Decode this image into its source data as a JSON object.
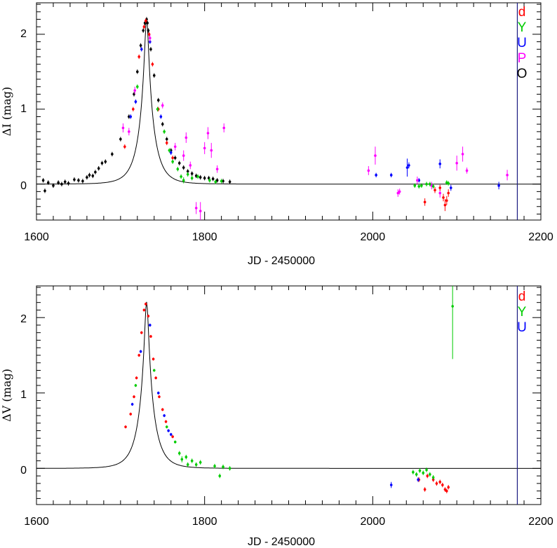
{
  "chart_data": [
    {
      "type": "scatter",
      "xlabel": "JD - 2450000",
      "ylabel": "ΔI (mag)",
      "xlim": [
        1600,
        2200
      ],
      "ylim": [
        -0.48,
        2.42
      ],
      "xticks": [
        "1600",
        "1800",
        "2000",
        "2200"
      ],
      "yticks": [
        "0",
        "1",
        "2"
      ],
      "vline_x": 2172,
      "model": {
        "t0": 1731,
        "tE": 17.5,
        "u0": 0.12,
        "fs": 0.9
      },
      "legend": [
        {
          "label": "d",
          "color": "#ff0000"
        },
        {
          "label": "Y",
          "color": "#00cc00"
        },
        {
          "label": "U",
          "color": "#0000ff"
        },
        {
          "label": "P",
          "color": "#ff00ff"
        },
        {
          "label": "O",
          "color": "#000000"
        }
      ],
      "series": [
        {
          "label": "O",
          "color": "#000000",
          "points": [
            [
              1608,
              0.05,
              0.03
            ],
            [
              1610,
              -0.09,
              0.03
            ],
            [
              1614,
              0.02,
              0.03
            ],
            [
              1620,
              -0.02,
              0.03
            ],
            [
              1626,
              0.02,
              0.03
            ],
            [
              1630,
              0.0,
              0.03
            ],
            [
              1634,
              0.03,
              0.03
            ],
            [
              1638,
              0.01,
              0.03
            ],
            [
              1645,
              0.06,
              0.03
            ],
            [
              1650,
              0.05,
              0.03
            ],
            [
              1655,
              0.04,
              0.03
            ],
            [
              1660,
              0.09,
              0.03
            ],
            [
              1663,
              0.12,
              0.03
            ],
            [
              1667,
              0.11,
              0.03
            ],
            [
              1670,
              0.16,
              0.03
            ],
            [
              1674,
              0.21,
              0.03
            ],
            [
              1678,
              0.28,
              0.03
            ],
            [
              1682,
              0.3,
              0.03
            ],
            [
              1690,
              0.4,
              0.03
            ],
            [
              1700,
              0.6,
              0.03
            ],
            [
              1710,
              0.9,
              0.03
            ],
            [
              1716,
              1.2,
              0.03
            ],
            [
              1720,
              1.5,
              0.03
            ],
            [
              1724,
              1.85,
              0.03
            ],
            [
              1727,
              2.05,
              0.03
            ],
            [
              1729,
              2.15,
              0.03
            ],
            [
              1731,
              2.2,
              0.03
            ],
            [
              1732,
              2.15,
              0.03
            ],
            [
              1733,
              2.05,
              0.03
            ],
            [
              1736,
              1.8,
              0.03
            ],
            [
              1740,
              1.45,
              0.03
            ],
            [
              1745,
              1.12,
              0.03
            ],
            [
              1750,
              0.8,
              0.03
            ],
            [
              1755,
              0.6,
              0.03
            ],
            [
              1760,
              0.45,
              0.03
            ],
            [
              1765,
              0.35,
              0.03
            ],
            [
              1770,
              0.28,
              0.03
            ],
            [
              1775,
              0.22,
              0.03
            ],
            [
              1780,
              0.17,
              0.03
            ],
            [
              1785,
              0.14,
              0.03
            ],
            [
              1790,
              0.11,
              0.03
            ],
            [
              1795,
              0.09,
              0.03
            ],
            [
              1800,
              0.08,
              0.03
            ],
            [
              1805,
              0.08,
              0.03
            ],
            [
              1810,
              0.07,
              0.03
            ],
            [
              1815,
              0.05,
              0.03
            ],
            [
              1822,
              0.04,
              0.03
            ],
            [
              1830,
              0.03,
              0.03
            ]
          ]
        },
        {
          "label": "U",
          "color": "#0000ff",
          "points": [
            [
              1712,
              0.9,
              0.03
            ],
            [
              1718,
              1.1,
              0.03
            ],
            [
              1725,
              1.8,
              0.03
            ],
            [
              1735,
              1.9,
              0.03
            ],
            [
              1748,
              0.9,
              0.03
            ],
            [
              1760,
              0.42,
              0.03
            ],
            [
              2004,
              0.12,
              0.03
            ],
            [
              2022,
              0.12,
              0.03
            ],
            [
              2041,
              0.22,
              0.12
            ],
            [
              2043,
              0.25,
              0.04
            ],
            [
              2055,
              0.05,
              0.03
            ],
            [
              2080,
              0.27,
              0.06
            ],
            [
              2093,
              -0.05,
              0.04
            ],
            [
              2150,
              -0.02,
              0.05
            ]
          ]
        },
        {
          "label": "P",
          "color": "#ff00ff",
          "points": [
            [
              1703,
              0.75,
              0.06
            ],
            [
              1710,
              0.7,
              0.05
            ],
            [
              1717,
              1.25,
              0.05
            ],
            [
              1735,
              1.95,
              0.05
            ],
            [
              1750,
              1.05,
              0.04
            ],
            [
              1765,
              0.5,
              0.05
            ],
            [
              1775,
              0.38,
              0.07
            ],
            [
              1778,
              0.62,
              0.07
            ],
            [
              1783,
              0.25,
              0.05
            ],
            [
              1790,
              -0.32,
              0.08
            ],
            [
              1795,
              -0.36,
              0.12
            ],
            [
              1800,
              0.48,
              0.08
            ],
            [
              1804,
              0.68,
              0.08
            ],
            [
              1808,
              0.45,
              0.1
            ],
            [
              1815,
              0.2,
              0.05
            ],
            [
              1823,
              0.75,
              0.06
            ],
            [
              1995,
              0.18,
              0.06
            ],
            [
              2003,
              0.38,
              0.12
            ],
            [
              2030,
              -0.12,
              0.05
            ],
            [
              2032,
              -0.1,
              0.04
            ],
            [
              2053,
              0.05,
              0.05
            ],
            [
              2070,
              -0.02,
              0.05
            ],
            [
              2080,
              -0.12,
              0.06
            ],
            [
              2100,
              0.28,
              0.1
            ],
            [
              2107,
              0.4,
              0.1
            ],
            [
              2112,
              0.18,
              0.04
            ],
            [
              2160,
              0.12,
              0.07
            ]
          ]
        },
        {
          "label": "d",
          "color": "#ff0000",
          "points": [
            [
              1705,
              0.5,
              0.03
            ],
            [
              1715,
              1.0,
              0.03
            ],
            [
              1722,
              1.7,
              0.03
            ],
            [
              1728,
              2.1,
              0.03
            ],
            [
              1730,
              2.18,
              0.03
            ],
            [
              1734,
              2.0,
              0.03
            ],
            [
              1738,
              1.6,
              0.03
            ],
            [
              1745,
              1.0,
              0.03
            ],
            [
              1755,
              0.55,
              0.03
            ],
            [
              1762,
              0.35,
              0.03
            ],
            [
              2062,
              -0.24,
              0.05
            ],
            [
              2074,
              -0.08,
              0.04
            ],
            [
              2080,
              -0.05,
              0.04
            ],
            [
              2084,
              -0.18,
              0.05
            ],
            [
              2086,
              -0.28,
              0.08
            ],
            [
              2088,
              -0.22,
              0.06
            ],
            [
              2090,
              -0.12,
              0.05
            ]
          ]
        },
        {
          "label": "Y",
          "color": "#00cc00",
          "points": [
            [
              1720,
              1.3,
              0.03
            ],
            [
              1744,
              1.0,
              0.03
            ],
            [
              1752,
              0.7,
              0.03
            ],
            [
              1758,
              0.45,
              0.03
            ],
            [
              1762,
              0.3,
              0.03
            ],
            [
              1768,
              0.2,
              0.03
            ],
            [
              1772,
              0.1,
              0.03
            ],
            [
              1775,
              0.05,
              0.04
            ],
            [
              1780,
              0.13,
              0.03
            ],
            [
              1785,
              0.08,
              0.03
            ],
            [
              1792,
              0.1,
              0.03
            ],
            [
              1806,
              0.05,
              0.03
            ],
            [
              1813,
              0.03,
              0.03
            ],
            [
              1820,
              0.04,
              0.03
            ],
            [
              2050,
              -0.02,
              0.03
            ],
            [
              2055,
              -0.03,
              0.03
            ],
            [
              2058,
              -0.02,
              0.03
            ],
            [
              2064,
              0.0,
              0.03
            ],
            [
              2068,
              0.0,
              0.03
            ],
            [
              2072,
              -0.03,
              0.03
            ],
            [
              2088,
              0.02,
              0.03
            ],
            [
              2090,
              0.01,
              0.03
            ]
          ]
        }
      ]
    },
    {
      "type": "scatter",
      "xlabel": "JD - 2450000",
      "ylabel": "ΔV (mag)",
      "xlim": [
        1600,
        2200
      ],
      "ylim": [
        -0.48,
        2.42
      ],
      "xticks": [
        "1600",
        "1800",
        "2000",
        "2200"
      ],
      "yticks": [
        "0",
        "1",
        "2"
      ],
      "vline_x": 2172,
      "model": {
        "t0": 1731,
        "tE": 17.5,
        "u0": 0.12,
        "fs": 0.9
      },
      "legend": [
        {
          "label": "d",
          "color": "#ff0000"
        },
        {
          "label": "Y",
          "color": "#00cc00"
        },
        {
          "label": "U",
          "color": "#0000ff"
        }
      ],
      "series": [
        {
          "label": "d",
          "color": "#ff0000",
          "points": [
            [
              1706,
              0.55,
              0.02
            ],
            [
              1712,
              0.72,
              0.02
            ],
            [
              1716,
              0.95,
              0.02
            ],
            [
              1719,
              1.2,
              0.02
            ],
            [
              1722,
              1.5,
              0.02
            ],
            [
              1725,
              1.8,
              0.02
            ],
            [
              1728,
              2.1,
              0.02
            ],
            [
              1730,
              2.18,
              0.02
            ],
            [
              1733,
              2.02,
              0.02
            ],
            [
              1736,
              1.75,
              0.02
            ],
            [
              1739,
              1.45,
              0.02
            ],
            [
              1742,
              1.2,
              0.02
            ],
            [
              1746,
              0.95,
              0.02
            ],
            [
              1750,
              0.78,
              0.02
            ],
            [
              1754,
              0.62,
              0.02
            ],
            [
              1762,
              0.42,
              0.02
            ],
            [
              2055,
              -0.15,
              0.03
            ],
            [
              2062,
              -0.28,
              0.03
            ],
            [
              2065,
              -0.1,
              0.03
            ],
            [
              2072,
              -0.15,
              0.03
            ],
            [
              2076,
              -0.2,
              0.03
            ],
            [
              2080,
              -0.18,
              0.03
            ],
            [
              2083,
              -0.22,
              0.03
            ],
            [
              2086,
              -0.28,
              0.03
            ],
            [
              2088,
              -0.3,
              0.03
            ],
            [
              2090,
              -0.25,
              0.03
            ]
          ]
        },
        {
          "label": "Y",
          "color": "#00cc00",
          "points": [
            [
              1718,
              1.1,
              0.02
            ],
            [
              1740,
              1.3,
              0.02
            ],
            [
              1755,
              0.55,
              0.02
            ],
            [
              1765,
              0.35,
              0.02
            ],
            [
              1770,
              0.2,
              0.03
            ],
            [
              1773,
              0.12,
              0.04
            ],
            [
              1778,
              0.15,
              0.03
            ],
            [
              1780,
              0.05,
              0.03
            ],
            [
              1785,
              0.1,
              0.03
            ],
            [
              1790,
              0.05,
              0.03
            ],
            [
              1795,
              0.08,
              0.03
            ],
            [
              1812,
              0.03,
              0.03
            ],
            [
              1818,
              -0.1,
              0.03
            ],
            [
              1822,
              0.02,
              0.03
            ],
            [
              1830,
              0.0,
              0.03
            ],
            [
              2048,
              -0.05,
              0.03
            ],
            [
              2052,
              -0.08,
              0.03
            ],
            [
              2056,
              -0.03,
              0.03
            ],
            [
              2060,
              -0.06,
              0.03
            ],
            [
              2064,
              -0.02,
              0.03
            ],
            [
              2068,
              -0.08,
              0.03
            ],
            [
              2072,
              -0.12,
              0.03
            ],
            [
              2095,
              2.15,
              0.7
            ]
          ]
        },
        {
          "label": "U",
          "color": "#0000ff",
          "points": [
            [
              1714,
              0.85,
              0.02
            ],
            [
              1724,
              1.55,
              0.02
            ],
            [
              1735,
              1.9,
              0.02
            ],
            [
              1745,
              1.0,
              0.02
            ],
            [
              1752,
              0.7,
              0.02
            ],
            [
              1757,
              0.5,
              0.02
            ],
            [
              1760,
              0.45,
              0.02
            ],
            [
              2022,
              -0.22,
              0.04
            ],
            [
              2054,
              -0.15,
              0.03
            ]
          ]
        }
      ]
    }
  ]
}
